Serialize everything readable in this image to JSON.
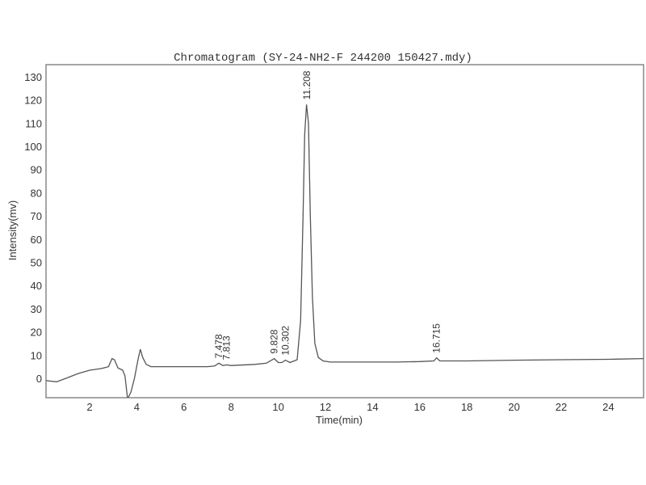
{
  "chart_data": {
    "type": "line",
    "title": "Chromatogram (SY-24-NH2-F 244200 150427.mdy)",
    "xlabel": "Time(min)",
    "ylabel": "Intensity(mv)",
    "xlim": [
      0.15,
      25.5
    ],
    "ylim": [
      -9,
      134
    ],
    "grid": false,
    "x_ticks": [
      "2",
      "4",
      "6",
      "8",
      "10",
      "12",
      "14",
      "16",
      "18",
      "20",
      "22",
      "24"
    ],
    "y_ticks": [
      "0",
      "10",
      "20",
      "30",
      "40",
      "50",
      "60",
      "70",
      "80",
      "90",
      "100",
      "110",
      "120",
      "130"
    ],
    "series": [
      {
        "color": "#555555",
        "x": [
          0.15,
          0.6,
          1.0,
          1.5,
          2.0,
          2.5,
          2.8,
          2.95,
          3.05,
          3.2,
          3.4,
          3.5,
          3.6,
          3.65,
          3.75,
          3.9,
          4.05,
          4.15,
          4.25,
          4.4,
          4.6,
          5.0,
          6.0,
          7.0,
          7.3,
          7.48,
          7.65,
          7.81,
          8.0,
          9.0,
          9.5,
          9.83,
          10.0,
          10.15,
          10.3,
          10.5,
          10.8,
          10.95,
          11.05,
          11.12,
          11.2,
          11.28,
          11.36,
          11.45,
          11.55,
          11.7,
          11.9,
          12.2,
          13,
          14,
          15,
          16,
          16.6,
          16.715,
          16.85,
          17,
          18,
          20,
          22,
          24,
          25.5
        ],
        "values": [
          -1,
          -1.5,
          0,
          2,
          3.5,
          4.2,
          5,
          8.5,
          8,
          4.5,
          3.5,
          1,
          -8,
          -8,
          -6,
          0,
          8,
          12.5,
          9,
          6,
          5,
          5,
          5,
          5,
          5.3,
          6.5,
          5.5,
          5.8,
          5.5,
          6,
          6.5,
          8.5,
          6.8,
          6.8,
          7.8,
          6.8,
          8,
          25,
          70,
          105,
          118,
          110,
          70,
          35,
          15,
          9,
          7.5,
          7,
          7,
          7,
          7,
          7.2,
          7.5,
          8.8,
          7.5,
          7.5,
          7.5,
          7.8,
          8,
          8.2,
          8.5
        ]
      }
    ],
    "peak_labels": [
      {
        "x": 7.478,
        "y": 6.5,
        "label": "7.478"
      },
      {
        "x": 7.813,
        "y": 5.8,
        "label": "7.813"
      },
      {
        "x": 9.828,
        "y": 8.5,
        "label": "9.828"
      },
      {
        "x": 10.302,
        "y": 7.8,
        "label": "10.302"
      },
      {
        "x": 11.208,
        "y": 118,
        "label": "11.208"
      },
      {
        "x": 16.715,
        "y": 8.8,
        "label": "16.715"
      }
    ]
  }
}
